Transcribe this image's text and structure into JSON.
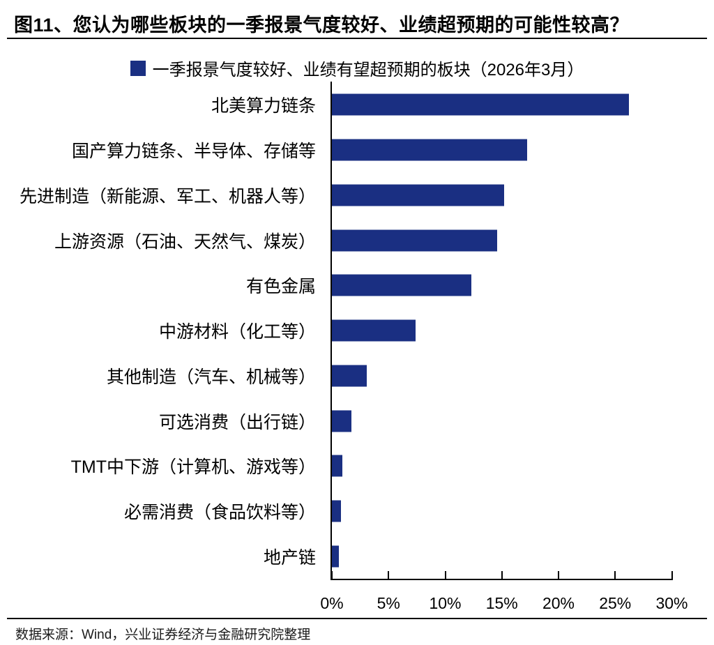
{
  "title": "图11、您认为哪些板块的一季报景气度较好、业绩超预期的可能性较高？",
  "legend": {
    "label": "一季报景气度较好、业绩有望超预期的板块（2026年3月）",
    "swatch_color": "#1A2F82"
  },
  "chart_data": {
    "type": "bar",
    "orientation": "horizontal",
    "title": "一季报景气度较好、业绩有望超预期的板块（2026年3月）",
    "categories": [
      "北美算力链条",
      "国产算力链条、半导体、存储等",
      "先进制造（新能源、军工、机器人等）",
      "上游资源（石油、天然气、煤炭）",
      "有色金属",
      "中游材料（化工等）",
      "其他制造（汽车、机械等）",
      "可选消费（出行链）",
      "TMT中下游（计算机、游戏等）",
      "必需消费（食品饮料等）",
      "地产链"
    ],
    "values": [
      26.2,
      17.2,
      15.2,
      14.6,
      12.3,
      7.4,
      3.1,
      1.7,
      0.9,
      0.8,
      0.6
    ],
    "unit": "%",
    "xlim": [
      0,
      30
    ],
    "x_ticks": [
      "0%",
      "5%",
      "10%",
      "15%",
      "20%",
      "25%",
      "30%"
    ],
    "bar_color": "#1A2F82",
    "grid": false,
    "legend_position": "top-center"
  },
  "footer": {
    "source": "数据来源：Wind，兴业证券经济与金融研究院整理"
  }
}
